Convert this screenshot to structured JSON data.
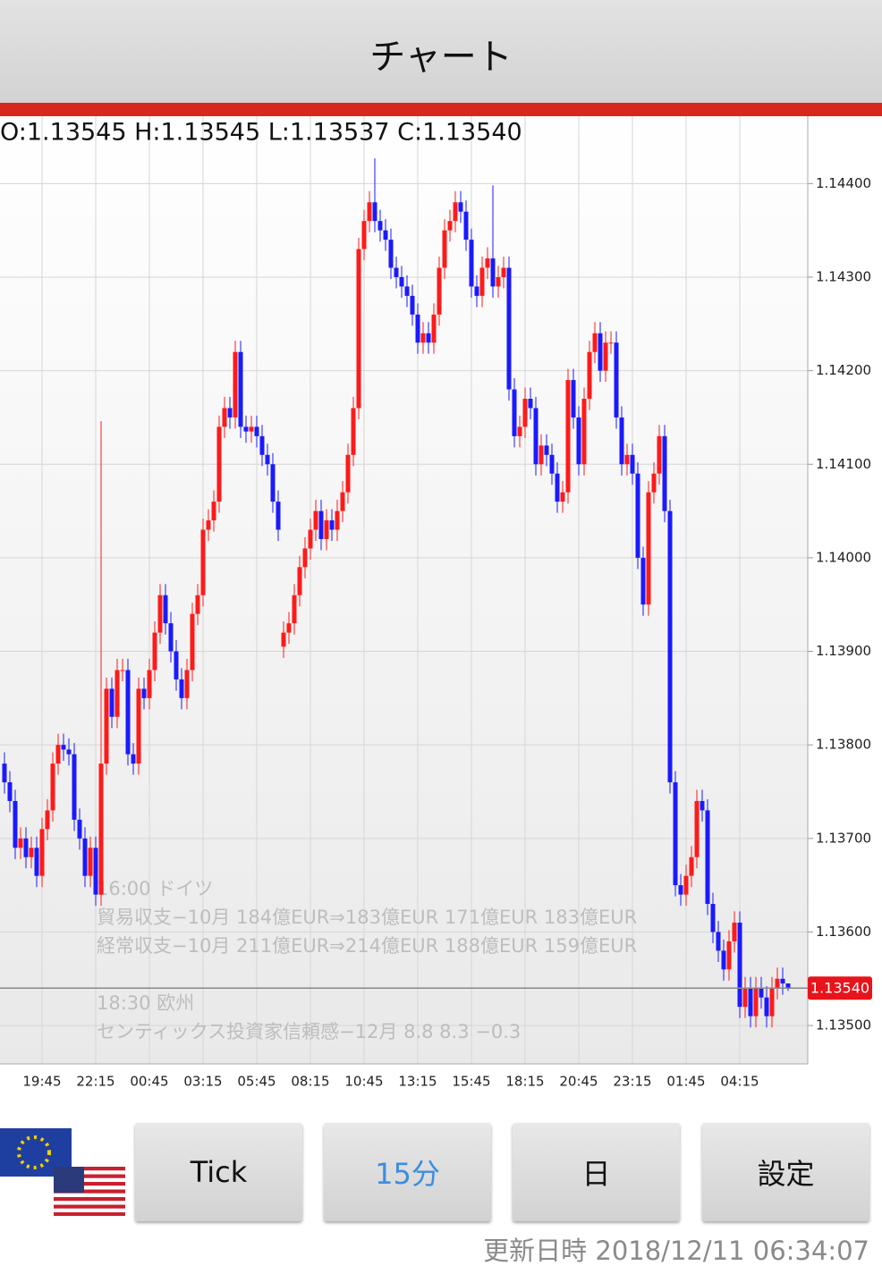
{
  "header": {
    "title": "チャート"
  },
  "info_bar": "O:1.13545 H:1.13545 L:1.13537 C:1.13540",
  "chart_data": {
    "type": "candlestick",
    "up_color": "#ff1a1a",
    "down_color": "#1a1aff",
    "grid": true,
    "categories": [
      null,
      null,
      null,
      null,
      null,
      null,
      null,
      "19:45",
      null,
      null,
      null,
      null,
      null,
      null,
      null,
      null,
      null,
      "22:15",
      null,
      null,
      null,
      null,
      null,
      null,
      null,
      null,
      null,
      "00:45",
      null,
      null,
      null,
      null,
      null,
      null,
      null,
      null,
      null,
      "03:15",
      null,
      null,
      null,
      null,
      null,
      null,
      null,
      null,
      null,
      "05:45",
      null,
      null,
      null,
      null,
      null,
      null,
      null,
      null,
      null,
      "08:15",
      null,
      null,
      null,
      null,
      null,
      null,
      null,
      null,
      null,
      "10:45",
      null,
      null,
      null,
      null,
      null,
      null,
      null,
      null,
      null,
      "13:15",
      null,
      null,
      null,
      null,
      null,
      null,
      null,
      null,
      null,
      "15:45",
      null,
      null,
      null,
      null,
      null,
      null,
      null,
      null,
      null,
      "18:15",
      null,
      null,
      null,
      null,
      null,
      null,
      null,
      null,
      null,
      "20:45",
      null,
      null,
      null,
      null,
      null,
      null,
      null,
      null,
      null,
      "23:15",
      null,
      null,
      null,
      null,
      null,
      null,
      null,
      null,
      null,
      "01:45",
      null,
      null,
      null,
      null,
      null,
      null,
      null,
      null,
      null,
      "04:15",
      null,
      null,
      null,
      null,
      null,
      null,
      null,
      null,
      null
    ],
    "open": [
      1.1378,
      1.1376,
      1.1374,
      1.1369,
      1.137,
      1.1368,
      1.1369,
      1.1366,
      1.1371,
      1.1373,
      1.1378,
      1.138,
      1.13795,
      1.1379,
      1.1372,
      1.137,
      1.1366,
      1.1369,
      1.1364,
      1.1378,
      1.1386,
      1.1383,
      1.1388,
      1.1388,
      1.1379,
      1.1378,
      1.1386,
      1.1385,
      1.1388,
      1.1392,
      1.1396,
      1.1393,
      1.139,
      1.1387,
      1.1385,
      1.1388,
      1.1394,
      1.1396,
      1.1403,
      1.1404,
      1.1406,
      1.1414,
      1.1416,
      1.1415,
      1.1422,
      1.1414,
      1.14135,
      1.1414,
      1.1413,
      1.1411,
      1.141,
      1.1406,
      1.13905,
      1.1392,
      1.1393,
      1.1396,
      1.1399,
      1.1401,
      1.1403,
      1.1405,
      1.1402,
      1.1404,
      1.1403,
      1.1405,
      1.1407,
      1.1411,
      1.1416,
      1.1433,
      1.1436,
      1.1438,
      1.1436,
      1.1435,
      1.1434,
      1.1431,
      1.143,
      1.1429,
      1.1428,
      1.1426,
      1.1423,
      1.1424,
      1.1423,
      1.1426,
      1.1431,
      1.1435,
      1.1436,
      1.1438,
      1.1437,
      1.1434,
      1.1429,
      1.1428,
      1.1431,
      1.1432,
      1.1429,
      1.143,
      1.1431,
      1.1418,
      1.1413,
      1.1414,
      1.1417,
      1.1416,
      1.141,
      1.1412,
      1.1411,
      1.1409,
      1.1406,
      1.1407,
      1.1419,
      1.1415,
      1.141,
      1.1417,
      1.1422,
      1.1424,
      1.142,
      1.1423,
      1.1423,
      1.1415,
      1.141,
      1.1411,
      1.1409,
      1.14,
      1.1395,
      1.1407,
      1.1409,
      1.1413,
      1.1405,
      1.1376,
      1.1365,
      1.1364,
      1.1366,
      1.1368,
      1.1374,
      1.1373,
      1.1363,
      1.136,
      1.1358,
      1.1356,
      1.1359,
      1.1361,
      1.1352,
      1.1354,
      1.1351,
      1.1354,
      1.1353,
      1.1351,
      1.1354,
      1.1355,
      1.13545
    ],
    "high": [
      1.13792,
      1.13772,
      1.13752,
      1.13712,
      1.13712,
      1.13702,
      1.13702,
      1.13722,
      1.13742,
      1.13792,
      1.13812,
      1.13812,
      1.13807,
      1.13802,
      1.13732,
      1.13712,
      1.13702,
      1.13702,
      1.14146,
      1.13872,
      1.13872,
      1.13892,
      1.13892,
      1.13892,
      1.13802,
      1.13872,
      1.13872,
      1.13892,
      1.13932,
      1.13972,
      1.13972,
      1.13942,
      1.13912,
      1.13882,
      1.13892,
      1.13952,
      1.13972,
      1.14042,
      1.14052,
      1.14072,
      1.14152,
      1.14172,
      1.14172,
      1.14232,
      1.14232,
      1.14152,
      1.14152,
      1.14152,
      1.14142,
      1.14122,
      1.14112,
      1.14072,
      1.13932,
      1.13942,
      1.13972,
      1.14002,
      1.14022,
      1.14042,
      1.14062,
      1.14062,
      1.14052,
      1.14052,
      1.14062,
      1.14082,
      1.14122,
      1.14172,
      1.14342,
      1.14372,
      1.14392,
      1.14427,
      1.14372,
      1.14362,
      1.14352,
      1.14322,
      1.14312,
      1.14302,
      1.14292,
      1.14272,
      1.14252,
      1.14252,
      1.14272,
      1.14322,
      1.14362,
      1.14372,
      1.14392,
      1.14392,
      1.14382,
      1.14352,
      1.14302,
      1.14322,
      1.14332,
      1.14398,
      1.14312,
      1.14322,
      1.14322,
      1.14192,
      1.14152,
      1.14182,
      1.14182,
      1.14172,
      1.14132,
      1.14132,
      1.14122,
      1.14102,
      1.14082,
      1.14202,
      1.14202,
      1.14162,
      1.14182,
      1.14232,
      1.14252,
      1.14252,
      1.14242,
      1.14242,
      1.14242,
      1.14162,
      1.14122,
      1.14122,
      1.14102,
      1.14012,
      1.14082,
      1.14102,
      1.14142,
      1.14142,
      1.14062,
      1.13772,
      1.13662,
      1.13672,
      1.13692,
      1.13752,
      1.13752,
      1.13742,
      1.13642,
      1.13612,
      1.13592,
      1.13602,
      1.13622,
      1.13622,
      1.13552,
      1.13552,
      1.13552,
      1.13552,
      1.13542,
      1.13552,
      1.13562,
      1.13562,
      1.13545
    ],
    "low": [
      1.13748,
      1.13728,
      1.13678,
      1.13678,
      1.13668,
      1.13668,
      1.13648,
      1.13648,
      1.13698,
      1.13718,
      1.13768,
      1.13783,
      1.13778,
      1.13708,
      1.13688,
      1.13648,
      1.13648,
      1.13628,
      1.13628,
      1.13768,
      1.13818,
      1.13818,
      1.13868,
      1.13778,
      1.13768,
      1.13768,
      1.13838,
      1.13838,
      1.13868,
      1.13908,
      1.13918,
      1.13888,
      1.13858,
      1.13838,
      1.13838,
      1.13868,
      1.13928,
      1.13948,
      1.14018,
      1.14028,
      1.14048,
      1.14128,
      1.14138,
      1.14138,
      1.14128,
      1.14123,
      1.14123,
      1.14118,
      1.14098,
      1.14088,
      1.14048,
      1.14018,
      1.13893,
      1.13908,
      1.13918,
      1.13948,
      1.13978,
      1.13998,
      1.14018,
      1.14008,
      1.14008,
      1.14018,
      1.14018,
      1.14038,
      1.14058,
      1.14098,
      1.14148,
      1.14318,
      1.14348,
      1.14348,
      1.14338,
      1.14328,
      1.14298,
      1.14288,
      1.14278,
      1.14268,
      1.14248,
      1.14218,
      1.14218,
      1.14218,
      1.14218,
      1.14248,
      1.14298,
      1.14338,
      1.14348,
      1.14358,
      1.14328,
      1.14278,
      1.14268,
      1.14268,
      1.14298,
      1.14278,
      1.14278,
      1.14288,
      1.14168,
      1.14118,
      1.14118,
      1.14128,
      1.14148,
      1.14088,
      1.14088,
      1.14098,
      1.14078,
      1.14048,
      1.14048,
      1.14058,
      1.14138,
      1.14088,
      1.14088,
      1.14158,
      1.14208,
      1.14188,
      1.14188,
      1.14218,
      1.14138,
      1.14088,
      1.14088,
      1.14078,
      1.13988,
      1.13938,
      1.13938,
      1.14058,
      1.14078,
      1.14038,
      1.13748,
      1.13638,
      1.13628,
      1.13628,
      1.13648,
      1.13668,
      1.13718,
      1.13618,
      1.13588,
      1.13568,
      1.13548,
      1.13548,
      1.13578,
      1.13508,
      1.13508,
      1.13498,
      1.13498,
      1.13518,
      1.13498,
      1.13498,
      1.13528,
      1.13533,
      1.13537
    ],
    "close": [
      1.1376,
      1.1374,
      1.1369,
      1.137,
      1.1368,
      1.1369,
      1.1366,
      1.1371,
      1.1373,
      1.1378,
      1.138,
      1.13795,
      1.1379,
      1.1372,
      1.137,
      1.1366,
      1.1369,
      1.1364,
      1.1378,
      1.1386,
      1.1383,
      1.1388,
      1.1388,
      1.1379,
      1.1378,
      1.1386,
      1.1385,
      1.1388,
      1.1392,
      1.1396,
      1.1393,
      1.139,
      1.1387,
      1.1385,
      1.1388,
      1.1394,
      1.1396,
      1.1403,
      1.1404,
      1.1406,
      1.1414,
      1.1416,
      1.1415,
      1.1422,
      1.1414,
      1.14135,
      1.1414,
      1.1413,
      1.1411,
      1.141,
      1.1406,
      1.1403,
      1.1392,
      1.1393,
      1.1396,
      1.1399,
      1.1401,
      1.1403,
      1.1405,
      1.1402,
      1.1404,
      1.1403,
      1.1405,
      1.1407,
      1.1411,
      1.1416,
      1.1433,
      1.1436,
      1.1438,
      1.1436,
      1.1435,
      1.1434,
      1.1431,
      1.143,
      1.1429,
      1.1428,
      1.1426,
      1.1423,
      1.1424,
      1.1423,
      1.1426,
      1.1431,
      1.1435,
      1.1436,
      1.1438,
      1.1437,
      1.1434,
      1.1429,
      1.1428,
      1.1431,
      1.1432,
      1.1429,
      1.143,
      1.1431,
      1.1418,
      1.1413,
      1.1414,
      1.1417,
      1.1416,
      1.141,
      1.1412,
      1.1411,
      1.1409,
      1.1406,
      1.1407,
      1.1419,
      1.1415,
      1.141,
      1.1417,
      1.1422,
      1.1424,
      1.142,
      1.1423,
      1.1423,
      1.1415,
      1.141,
      1.1411,
      1.1409,
      1.14,
      1.1395,
      1.1407,
      1.1409,
      1.1413,
      1.1405,
      1.1376,
      1.1365,
      1.1364,
      1.1366,
      1.1368,
      1.1374,
      1.1373,
      1.1363,
      1.136,
      1.1358,
      1.1356,
      1.1359,
      1.1361,
      1.1352,
      1.1354,
      1.1351,
      1.1354,
      1.1353,
      1.1351,
      1.1354,
      1.1355,
      1.13545,
      1.1354
    ],
    "ylim": [
      1.13459,
      1.14472
    ],
    "yticks": [
      {
        "value": 1.135,
        "label": "1.13500"
      },
      {
        "value": 1.136,
        "label": "1.13600"
      },
      {
        "value": 1.137,
        "label": "1.13700"
      },
      {
        "value": 1.138,
        "label": "1.13800"
      },
      {
        "value": 1.139,
        "label": "1.13900"
      },
      {
        "value": 1.14,
        "label": "1.14000"
      },
      {
        "value": 1.141,
        "label": "1.14100"
      },
      {
        "value": 1.142,
        "label": "1.14200"
      },
      {
        "value": 1.143,
        "label": "1.14300"
      },
      {
        "value": 1.144,
        "label": "1.14400"
      }
    ],
    "current_price": {
      "value": 1.1354,
      "label": "1.13540"
    },
    "annotations": [
      "16:00 ドイツ",
      "貿易収支−10月 184億EUR⇒183億EUR 171億EUR 183億EUR",
      "経常収支−10月 211億EUR⇒214億EUR 188億EUR 159億EUR",
      "18:30 欧州",
      "センティックス投資家信頼感−12月 8.8 8.3 −0.3"
    ]
  },
  "buttons": [
    "Tick",
    "15分",
    "日",
    "設定"
  ],
  "footer": "更新日時 2018/12/11 06:34:07"
}
